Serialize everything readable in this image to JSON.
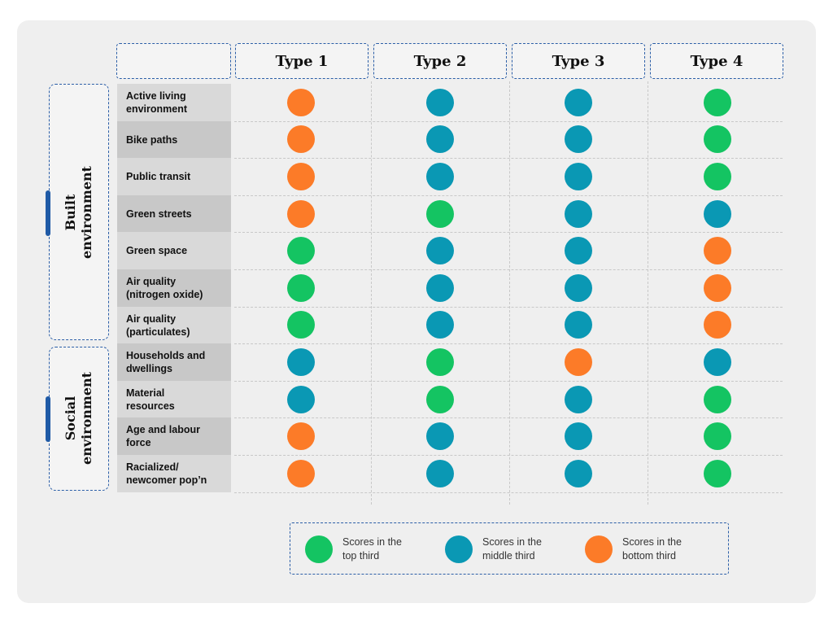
{
  "columns": [
    "Type 1",
    "Type 2",
    "Type 3",
    "Type 4"
  ],
  "groups": [
    {
      "label": "Built\nenvironment",
      "rows": 7
    },
    {
      "label": "Social\nenvironment",
      "rows": 4
    }
  ],
  "rows": [
    {
      "label": "Active living\nenvironment",
      "scores": [
        "bottom",
        "middle",
        "middle",
        "top"
      ]
    },
    {
      "label": "Bike paths",
      "scores": [
        "bottom",
        "middle",
        "middle",
        "top"
      ]
    },
    {
      "label": "Public transit",
      "scores": [
        "bottom",
        "middle",
        "middle",
        "top"
      ]
    },
    {
      "label": "Green streets",
      "scores": [
        "bottom",
        "top",
        "middle",
        "middle"
      ]
    },
    {
      "label": "Green space",
      "scores": [
        "top",
        "middle",
        "middle",
        "bottom"
      ]
    },
    {
      "label": "Air quality\n(nitrogen oxide)",
      "scores": [
        "top",
        "middle",
        "middle",
        "bottom"
      ]
    },
    {
      "label": "Air quality\n(particulates)",
      "scores": [
        "top",
        "middle",
        "middle",
        "bottom"
      ]
    },
    {
      "label": "Households and\ndwellings",
      "scores": [
        "middle",
        "top",
        "bottom",
        "middle"
      ]
    },
    {
      "label": "Material\nresources",
      "scores": [
        "middle",
        "top",
        "middle",
        "top"
      ]
    },
    {
      "label": "Age and labour\nforce",
      "scores": [
        "bottom",
        "middle",
        "middle",
        "top"
      ]
    },
    {
      "label": "Racialized/\nnewcomer pop’n",
      "scores": [
        "bottom",
        "middle",
        "middle",
        "top"
      ]
    }
  ],
  "colors": {
    "top": "#14c462",
    "middle": "#0a98b4",
    "bottom": "#fc7b28"
  },
  "legend": [
    {
      "key": "top",
      "text": "Scores in the\ntop third"
    },
    {
      "key": "middle",
      "text": "Scores in the\nmiddle third"
    },
    {
      "key": "bottom",
      "text": "Scores in the\nbottom third"
    }
  ]
}
